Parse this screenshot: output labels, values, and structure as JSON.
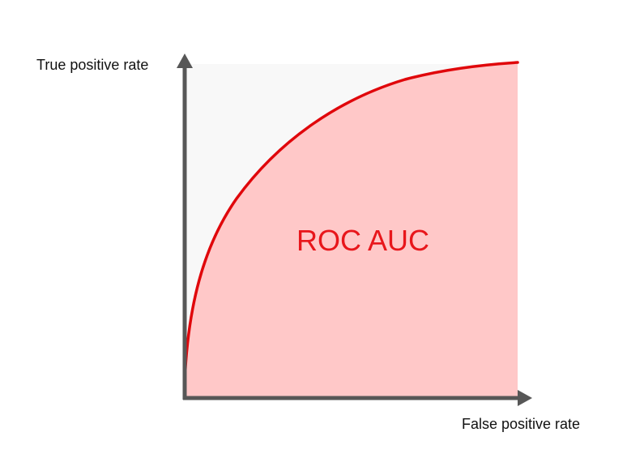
{
  "diagram": {
    "y_axis_label": "True positive rate",
    "x_axis_label": "False positive rate",
    "area_label": "ROC AUC"
  },
  "colors": {
    "plot_background": "#f8f8f8",
    "area_fill": "#ffc8c8",
    "curve": "#e0070b",
    "axis": "#575757",
    "area_label": "#e8161b"
  }
}
